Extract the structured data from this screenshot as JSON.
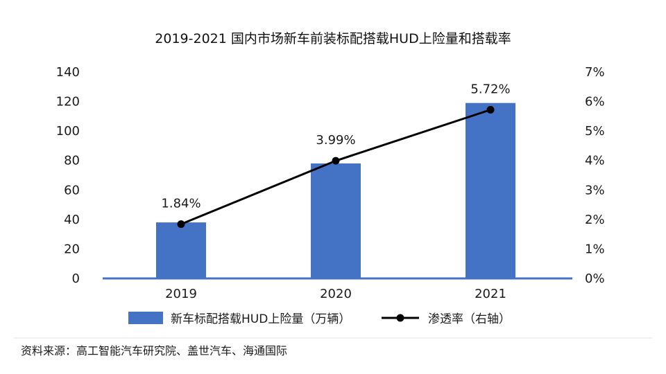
{
  "chart_data": {
    "type": "bar",
    "title": "2019-2021  国内市场新车前装标配搭载HUD上险量和搭载率",
    "categories": [
      "2019",
      "2020",
      "2021"
    ],
    "series": [
      {
        "name": "新车标配搭载HUD上险量（万辆）",
        "type": "bar",
        "axis": "left",
        "color": "#4472C4",
        "values": [
          38,
          78,
          119
        ]
      },
      {
        "name": "渗透率（右轴）",
        "type": "line",
        "axis": "right",
        "color": "#000000",
        "values": [
          1.84,
          3.99,
          5.72
        ],
        "labels": [
          "1.84%",
          "3.99%",
          "5.72%"
        ]
      }
    ],
    "ylim": [
      0,
      140
    ],
    "yticks": [
      "0",
      "20",
      "40",
      "60",
      "80",
      "100",
      "120",
      "140"
    ],
    "y2lim": [
      0,
      7
    ],
    "y2ticks": [
      "0%",
      "1%",
      "2%",
      "3%",
      "4%",
      "5%",
      "6%",
      "7%"
    ],
    "xlabel": "",
    "ylabel": "",
    "legend_position": "bottom",
    "grid": false
  },
  "source": "资料来源：高工智能汽车研究院、盖世汽车、海通国际"
}
